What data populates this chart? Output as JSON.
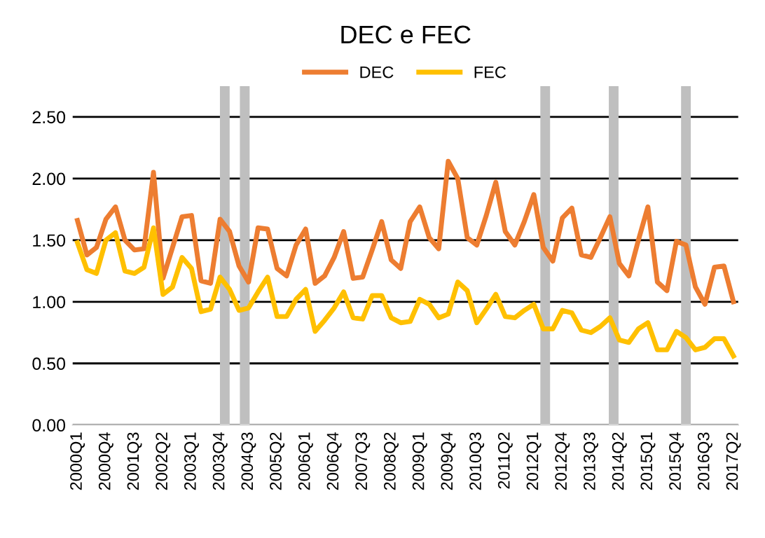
{
  "chart_data": {
    "type": "line",
    "title": "DEC e FEC",
    "categories": [
      "2000Q1",
      null,
      null,
      "2000Q4",
      null,
      null,
      "2001Q3",
      null,
      null,
      "2002Q2",
      null,
      null,
      "2003Q1",
      null,
      null,
      "2003Q4",
      null,
      null,
      "2004Q3",
      null,
      null,
      "2005Q2",
      null,
      null,
      "2006Q1",
      null,
      null,
      "2006Q4",
      null,
      null,
      "2007Q3",
      null,
      null,
      "2008Q2",
      null,
      null,
      "2009Q1",
      null,
      null,
      "2009Q4",
      null,
      null,
      "2010Q3",
      null,
      null,
      "2011Q2",
      null,
      null,
      "2012Q1",
      null,
      null,
      "2012Q4",
      null,
      null,
      "2013Q3",
      null,
      null,
      "2014Q2",
      null,
      null,
      "2015Q1",
      null,
      null,
      "2015Q4",
      null,
      null,
      "2016Q3",
      null,
      null,
      "2017Q2"
    ],
    "series": [
      {
        "name": "DEC",
        "color": "#ed7d31",
        "values": [
          1.66,
          1.38,
          1.44,
          1.67,
          1.77,
          1.5,
          1.42,
          1.43,
          2.05,
          1.19,
          1.44,
          1.69,
          1.7,
          1.17,
          1.15,
          1.67,
          1.57,
          1.29,
          1.16,
          1.6,
          1.59,
          1.27,
          1.21,
          1.46,
          1.59,
          1.15,
          1.21,
          1.36,
          1.57,
          1.19,
          1.2,
          1.42,
          1.65,
          1.34,
          1.27,
          1.65,
          1.77,
          1.52,
          1.43,
          2.14,
          2.0,
          1.52,
          1.46,
          1.7,
          1.97,
          1.57,
          1.46,
          1.65,
          1.87,
          1.44,
          1.33,
          1.68,
          1.76,
          1.38,
          1.36,
          1.52,
          1.69,
          1.31,
          1.21,
          1.5,
          1.77,
          1.16,
          1.09,
          1.49,
          1.46,
          1.12,
          0.98,
          1.28,
          1.29,
          1.0
        ]
      },
      {
        "name": "FEC",
        "color": "#ffc000",
        "values": [
          1.48,
          1.26,
          1.23,
          1.5,
          1.56,
          1.25,
          1.23,
          1.28,
          1.6,
          1.06,
          1.12,
          1.36,
          1.27,
          0.92,
          0.94,
          1.2,
          1.1,
          0.93,
          0.95,
          1.08,
          1.2,
          0.88,
          0.88,
          1.02,
          1.1,
          0.76,
          0.85,
          0.95,
          1.08,
          0.87,
          0.86,
          1.05,
          1.05,
          0.87,
          0.83,
          0.84,
          1.02,
          0.98,
          0.87,
          0.9,
          1.16,
          1.09,
          0.83,
          0.94,
          1.06,
          0.88,
          0.87,
          0.93,
          0.98,
          0.78,
          0.78,
          0.93,
          0.91,
          0.77,
          0.75,
          0.8,
          0.87,
          0.69,
          0.67,
          0.78,
          0.83,
          0.61,
          0.61,
          0.76,
          0.71,
          0.61,
          0.63,
          0.7,
          0.7,
          0.56
        ]
      }
    ],
    "ylim": [
      0,
      2.75
    ],
    "yticks": [
      {
        "value": 0,
        "label": "0.00"
      },
      {
        "value": 0.5,
        "label": "0.50"
      },
      {
        "value": 1.0,
        "label": "1.00"
      },
      {
        "value": 1.5,
        "label": "1.50"
      },
      {
        "value": 2.0,
        "label": "2.00"
      },
      {
        "value": 2.5,
        "label": "2.50"
      }
    ],
    "grid": "y",
    "legend": "top",
    "marker": "none",
    "line_style": "solid"
  }
}
